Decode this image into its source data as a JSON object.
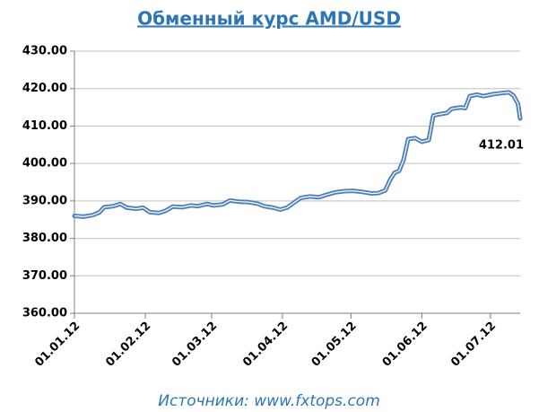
{
  "chart_data": {
    "type": "line",
    "title": "Обменный курс AMD/USD",
    "source": "Источники: www.fxtops.com",
    "x": [
      "01.01.12",
      "05.01.12",
      "09.01.12",
      "12.01.12",
      "14.01.12",
      "18.01.12",
      "21.01.12",
      "24.01.12",
      "28.01.12",
      "31.01.12",
      "03.02.12",
      "07.02.12",
      "10.02.12",
      "13.02.12",
      "17.02.12",
      "21.02.12",
      "24.02.12",
      "28.02.12",
      "02.03.12",
      "06.03.12",
      "09.03.12",
      "13.03.12",
      "17.03.12",
      "21.03.12",
      "24.03.12",
      "28.03.12",
      "31.03.12",
      "03.04.12",
      "06.04.12",
      "09.04.12",
      "13.04.12",
      "17.04.12",
      "20.04.12",
      "24.04.12",
      "28.04.12",
      "02.05.12",
      "06.05.12",
      "10.05.12",
      "13.05.12",
      "16.05.12",
      "18.05.12",
      "20.05.12",
      "22.05.12",
      "24.05.12",
      "26.05.12",
      "29.05.12",
      "01.06.12",
      "04.06.12",
      "06.06.12",
      "09.06.12",
      "12.06.12",
      "14.06.12",
      "18.06.12",
      "20.06.12",
      "22.06.12",
      "25.06.12",
      "28.06.12",
      "02.07.12",
      "06.07.12",
      "09.07.12",
      "11.07.12",
      "13.07.12",
      "14.07.12"
    ],
    "values": [
      386,
      385.8,
      386.2,
      387,
      388.3,
      388.6,
      389.2,
      388.2,
      387.9,
      388.2,
      387,
      386.8,
      387.4,
      388.5,
      388.3,
      388.8,
      388.6,
      389.2,
      388.8,
      389.1,
      390.1,
      389.8,
      389.7,
      389.3,
      388.6,
      388.2,
      387.7,
      388.2,
      389.5,
      390.8,
      391.2,
      391,
      391.6,
      392.3,
      392.6,
      392.7,
      392.4,
      392,
      392.1,
      392.8,
      395.5,
      397.5,
      398,
      401,
      406.5,
      406.8,
      405.8,
      406.3,
      412.8,
      413.2,
      413.5,
      414.6,
      415,
      414.8,
      418,
      418.4,
      418,
      418.5,
      418.8,
      419,
      418.2,
      416,
      412.01
    ],
    "color": "#4f81bd",
    "end_label": true,
    "xlim": [
      "01.01.12",
      "14.07.12"
    ],
    "xticks": [
      "01.01.12",
      "01.02.12",
      "01.03.12",
      "01.04.12",
      "01.05.12",
      "01.06.12",
      "01.07.12"
    ],
    "ylim": [
      360,
      430
    ],
    "yticks": [
      {
        "value": 360,
        "label": "360.00"
      },
      {
        "value": 370,
        "label": "370.00"
      },
      {
        "value": 380,
        "label": "380.00"
      },
      {
        "value": 390,
        "label": "390.00"
      },
      {
        "value": 400,
        "label": "400.00"
      },
      {
        "value": 410,
        "label": "410.00"
      },
      {
        "value": 420,
        "label": "420.00"
      },
      {
        "value": 430,
        "label": "430.00"
      }
    ],
    "grid": true
  }
}
